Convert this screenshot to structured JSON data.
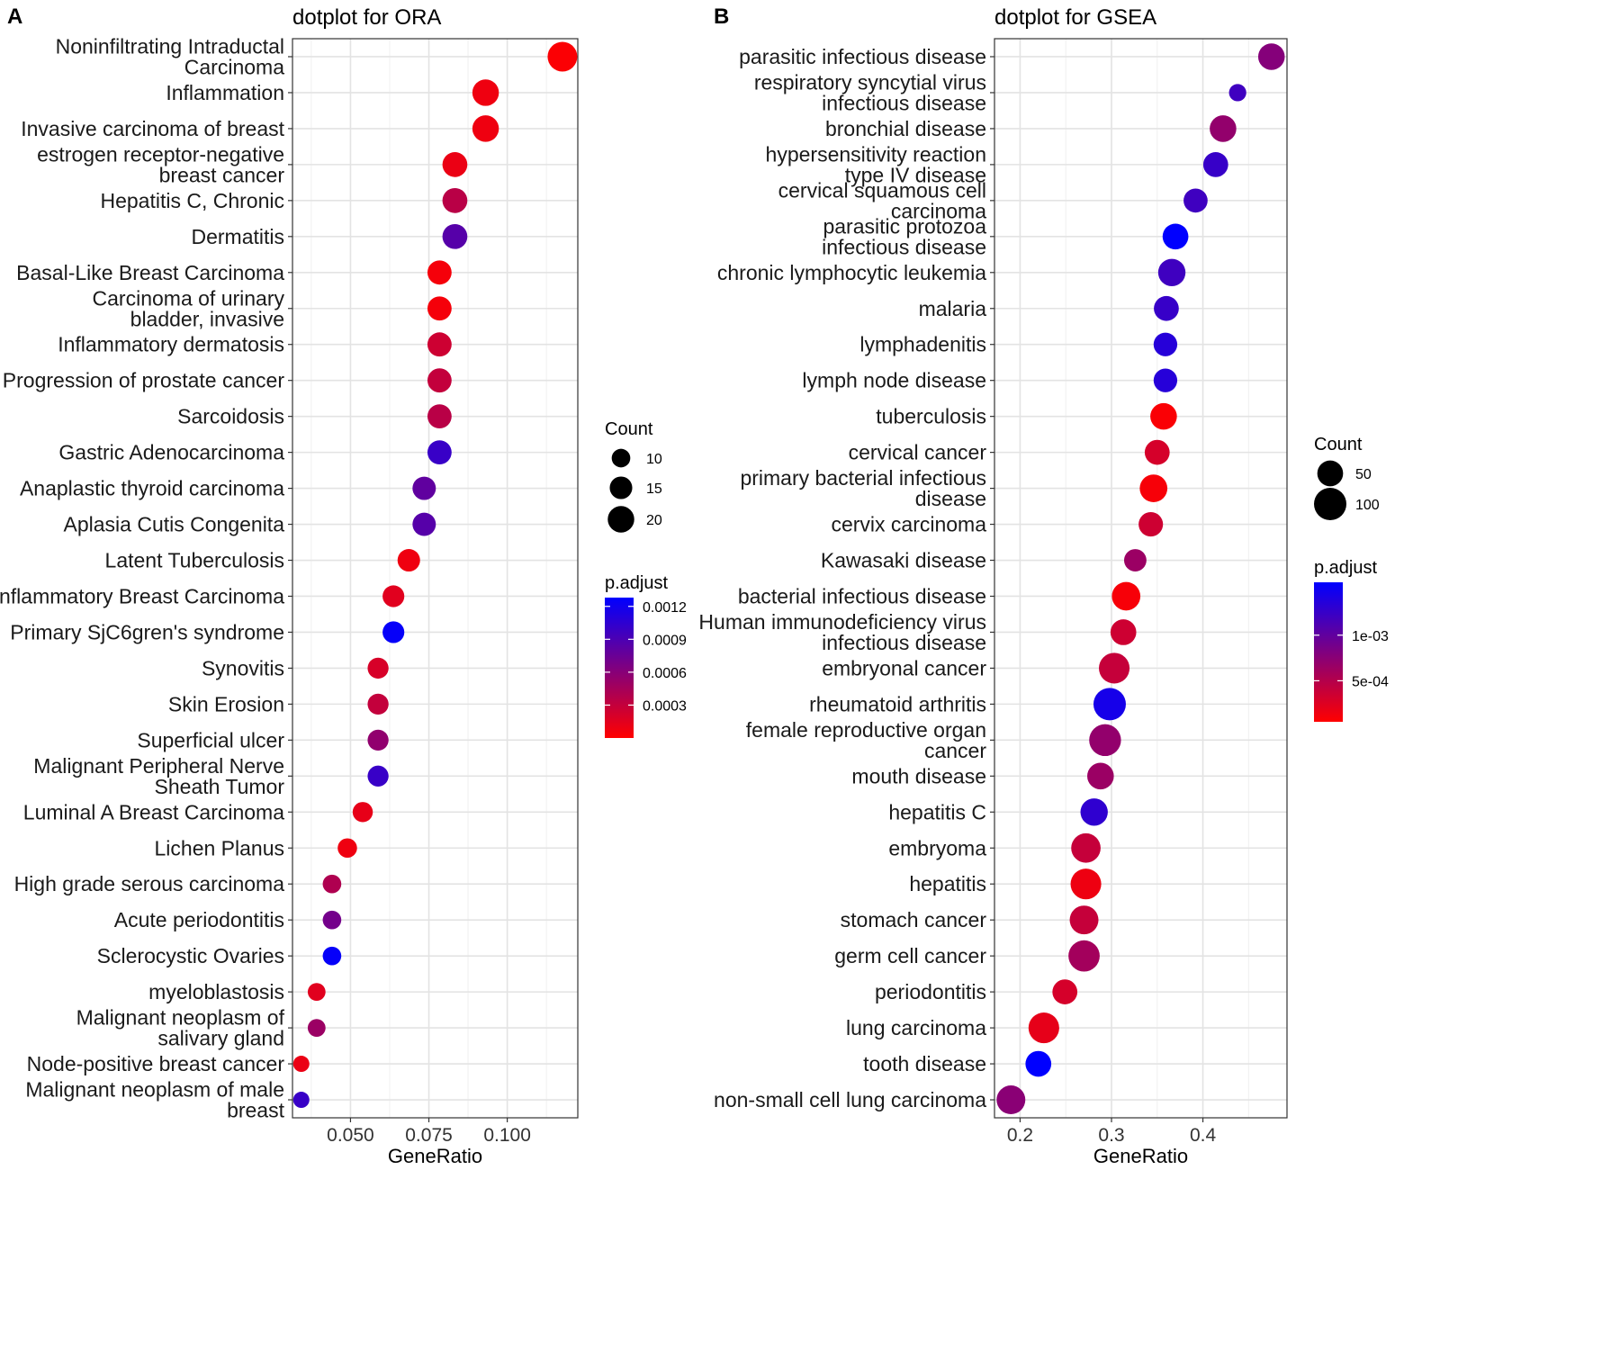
{
  "chart_data": [
    {
      "type": "scatter",
      "panel_label": "A",
      "title": "dotplot for ORA",
      "xlabel": "GeneRatio",
      "xlim": [
        0.0315,
        0.1225
      ],
      "xticks": [
        0.05,
        0.075,
        0.1
      ],
      "xtick_labels": [
        "0.050",
        "0.075",
        "0.100"
      ],
      "grid": true,
      "size_legend": {
        "title": "Count",
        "values": [
          10,
          15,
          20
        ],
        "labels": [
          "10",
          "15",
          "20"
        ],
        "range": [
          4,
          24
        ]
      },
      "color_legend": {
        "title": "p.adjust",
        "low_color": "#FF0000",
        "high_color": "#0000FF",
        "range": [
          0.0,
          0.00128
        ],
        "ticks": [
          0.0003,
          0.0006,
          0.0009,
          0.0012
        ],
        "tick_labels": [
          "0.0003",
          "0.0006",
          "0.0009",
          "0.0012"
        ]
      },
      "points": [
        {
          "label": [
            "Noninfiltrating Intraductal",
            "Carcinoma"
          ],
          "x": 0.1176,
          "count": 24,
          "padj": 2e-05
        },
        {
          "label": [
            "Inflammation"
          ],
          "x": 0.0931,
          "count": 20,
          "padj": 8e-05
        },
        {
          "label": [
            "Invasive carcinoma of breast"
          ],
          "x": 0.0931,
          "count": 20,
          "padj": 8e-05
        },
        {
          "label": [
            "estrogen receptor-negative",
            "breast cancer"
          ],
          "x": 0.0833,
          "count": 18,
          "padj": 0.0001
        },
        {
          "label": [
            "Hepatitis C, Chronic"
          ],
          "x": 0.0833,
          "count": 18,
          "padj": 0.00035
        },
        {
          "label": [
            "Dermatitis"
          ],
          "x": 0.0833,
          "count": 18,
          "padj": 0.00085
        },
        {
          "label": [
            "Basal-Like Breast Carcinoma"
          ],
          "x": 0.0784,
          "count": 17,
          "padj": 5e-05
        },
        {
          "label": [
            "Carcinoma of urinary",
            "bladder, invasive"
          ],
          "x": 0.0784,
          "count": 17,
          "padj": 5e-05
        },
        {
          "label": [
            "Inflammatory dermatosis"
          ],
          "x": 0.0784,
          "count": 17,
          "padj": 0.00025
        },
        {
          "label": [
            "Progression of prostate cancer"
          ],
          "x": 0.0784,
          "count": 17,
          "padj": 0.0003
        },
        {
          "label": [
            "Sarcoidosis"
          ],
          "x": 0.0784,
          "count": 17,
          "padj": 0.00035
        },
        {
          "label": [
            "Gastric Adenocarcinoma"
          ],
          "x": 0.0784,
          "count": 17,
          "padj": 0.001
        },
        {
          "label": [
            "Anaplastic thyroid carcinoma"
          ],
          "x": 0.0735,
          "count": 16,
          "padj": 0.0008
        },
        {
          "label": [
            "Aplasia Cutis Congenita"
          ],
          "x": 0.0735,
          "count": 16,
          "padj": 0.00085
        },
        {
          "label": [
            "Latent Tuberculosis"
          ],
          "x": 0.0686,
          "count": 15,
          "padj": 8e-05
        },
        {
          "label": [
            "Inflammatory Breast Carcinoma"
          ],
          "x": 0.0637,
          "count": 14,
          "padj": 0.00015
        },
        {
          "label": [
            "Primary SjC6gren's syndrome"
          ],
          "x": 0.0637,
          "count": 14,
          "padj": 0.00125
        },
        {
          "label": [
            "Synovitis"
          ],
          "x": 0.0588,
          "count": 13,
          "padj": 0.0002
        },
        {
          "label": [
            "Skin Erosion"
          ],
          "x": 0.0588,
          "count": 13,
          "padj": 0.0003
        },
        {
          "label": [
            "Superficial ulcer"
          ],
          "x": 0.0588,
          "count": 13,
          "padj": 0.00055
        },
        {
          "label": [
            "Malignant Peripheral Nerve",
            "Sheath Tumor"
          ],
          "x": 0.0588,
          "count": 13,
          "padj": 0.001
        },
        {
          "label": [
            "Luminal A Breast Carcinoma"
          ],
          "x": 0.0539,
          "count": 12,
          "padj": 0.00012
        },
        {
          "label": [
            "Lichen Planus"
          ],
          "x": 0.049,
          "count": 11,
          "padj": 8e-05
        },
        {
          "label": [
            "High grade serous carcinoma"
          ],
          "x": 0.0441,
          "count": 10,
          "padj": 0.0004
        },
        {
          "label": [
            "Acute periodontitis"
          ],
          "x": 0.0441,
          "count": 10,
          "padj": 0.0007
        },
        {
          "label": [
            "Sclerocystic Ovaries"
          ],
          "x": 0.0441,
          "count": 10,
          "padj": 0.00125
        },
        {
          "label": [
            "myeloblastosis"
          ],
          "x": 0.0392,
          "count": 9,
          "padj": 0.00015
        },
        {
          "label": [
            "Malignant neoplasm of",
            "salivary gland"
          ],
          "x": 0.0392,
          "count": 9,
          "padj": 0.0005
        },
        {
          "label": [
            "Node-positive breast cancer"
          ],
          "x": 0.0343,
          "count": 7,
          "padj": 0.0001
        },
        {
          "label": [
            "Malignant neoplasm of male",
            "breast"
          ],
          "x": 0.0343,
          "count": 7,
          "padj": 0.001
        }
      ]
    },
    {
      "type": "scatter",
      "panel_label": "B",
      "title": "dotplot for GSEA",
      "xlabel": "GeneRatio",
      "xlim": [
        0.172,
        0.492
      ],
      "xticks": [
        0.2,
        0.3,
        0.4
      ],
      "xtick_labels": [
        "0.2",
        "0.3",
        "0.4"
      ],
      "grid": true,
      "size_legend": {
        "title": "Count",
        "values": [
          50,
          100
        ],
        "labels": [
          "50",
          "100"
        ],
        "range": [
          8,
          140
        ]
      },
      "color_legend": {
        "title": "p.adjust",
        "low_color": "#FF0000",
        "high_color": "#0000FF",
        "range": [
          5e-05,
          0.00158
        ],
        "ticks": [
          0.0005,
          0.001
        ],
        "tick_labels": [
          "5e-04",
          "1e-03"
        ]
      },
      "points": [
        {
          "label": [
            "parasitic infectious disease"
          ],
          "x": 0.475,
          "count": 55,
          "padj": 0.00078
        },
        {
          "label": [
            "respiratory syncytial virus",
            "infectious disease"
          ],
          "x": 0.438,
          "count": 15,
          "padj": 0.0012
        },
        {
          "label": [
            "bronchial disease"
          ],
          "x": 0.422,
          "count": 55,
          "padj": 0.0007
        },
        {
          "label": [
            "hypersensitivity reaction",
            "type IV disease"
          ],
          "x": 0.414,
          "count": 45,
          "padj": 0.00125
        },
        {
          "label": [
            "cervical squamous cell",
            "carcinoma"
          ],
          "x": 0.392,
          "count": 40,
          "padj": 0.0012
        },
        {
          "label": [
            "parasitic protozoa",
            "infectious disease"
          ],
          "x": 0.37,
          "count": 50,
          "padj": 0.00158
        },
        {
          "label": [
            "chronic lymphocytic leukemia"
          ],
          "x": 0.366,
          "count": 60,
          "padj": 0.0012
        },
        {
          "label": [
            "malaria"
          ],
          "x": 0.36,
          "count": 45,
          "padj": 0.00125
        },
        {
          "label": [
            "lymphadenitis"
          ],
          "x": 0.359,
          "count": 38,
          "padj": 0.00135
        },
        {
          "label": [
            "lymph node disease"
          ],
          "x": 0.359,
          "count": 38,
          "padj": 0.00135
        },
        {
          "label": [
            "tuberculosis"
          ],
          "x": 0.357,
          "count": 55,
          "padj": 8e-05
        },
        {
          "label": [
            "cervical cancer"
          ],
          "x": 0.35,
          "count": 45,
          "padj": 0.0003
        },
        {
          "label": [
            "primary bacterial infectious",
            "disease"
          ],
          "x": 0.346,
          "count": 62,
          "padj": 0.0001
        },
        {
          "label": [
            "cervix carcinoma"
          ],
          "x": 0.343,
          "count": 42,
          "padj": 0.00035
        },
        {
          "label": [
            "Kawasaki disease"
          ],
          "x": 0.326,
          "count": 32,
          "padj": 0.00065
        },
        {
          "label": [
            "bacterial infectious disease"
          ],
          "x": 0.316,
          "count": 68,
          "padj": 0.0001
        },
        {
          "label": [
            "Human immunodeficiency virus",
            "infectious disease"
          ],
          "x": 0.313,
          "count": 50,
          "padj": 0.00035
        },
        {
          "label": [
            "embryonal cancer"
          ],
          "x": 0.303,
          "count": 85,
          "padj": 0.0004
        },
        {
          "label": [
            "rheumatoid arthritis"
          ],
          "x": 0.298,
          "count": 100,
          "padj": 0.00145
        },
        {
          "label": [
            "female reproductive organ",
            "cancer"
          ],
          "x": 0.293,
          "count": 95,
          "padj": 0.0007
        },
        {
          "label": [
            "mouth disease"
          ],
          "x": 0.288,
          "count": 55,
          "padj": 0.00065
        },
        {
          "label": [
            "hepatitis C"
          ],
          "x": 0.281,
          "count": 60,
          "padj": 0.0013
        },
        {
          "label": [
            "embryoma"
          ],
          "x": 0.272,
          "count": 75,
          "padj": 0.0004
        },
        {
          "label": [
            "hepatitis"
          ],
          "x": 0.272,
          "count": 85,
          "padj": 0.00015
        },
        {
          "label": [
            "stomach cancer"
          ],
          "x": 0.27,
          "count": 70,
          "padj": 0.0004
        },
        {
          "label": [
            "germ cell cancer"
          ],
          "x": 0.27,
          "count": 90,
          "padj": 0.0006
        },
        {
          "label": [
            "periodontitis"
          ],
          "x": 0.249,
          "count": 45,
          "padj": 0.0003
        },
        {
          "label": [
            "lung carcinoma"
          ],
          "x": 0.226,
          "count": 85,
          "padj": 0.0002
        },
        {
          "label": [
            "tooth disease"
          ],
          "x": 0.22,
          "count": 50,
          "padj": 0.00158
        },
        {
          "label": [
            "non-small cell lung carcinoma"
          ],
          "x": 0.19,
          "count": 70,
          "padj": 0.00075
        }
      ]
    }
  ]
}
